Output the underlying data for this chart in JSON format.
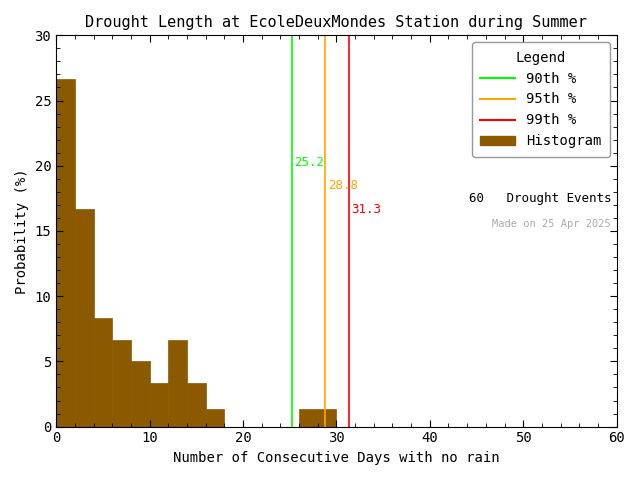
{
  "title": "Drought Length at EcoleDeuxMondes Station during Summer",
  "xlabel": "Number of Consecutive Days with no rain",
  "ylabel": "Probability (%)",
  "bar_color": "#8B5A00",
  "bar_edge_color": "#8B5A00",
  "xlim": [
    0,
    60
  ],
  "ylim": [
    0,
    30
  ],
  "xticks": [
    0,
    10,
    20,
    30,
    40,
    50,
    60
  ],
  "yticks": [
    0,
    5,
    10,
    15,
    20,
    25,
    30
  ],
  "bin_width": 2,
  "hist_left_edges": [
    0,
    2,
    4,
    6,
    8,
    10,
    12,
    14,
    16,
    18,
    20,
    22,
    24,
    26,
    28,
    30,
    32
  ],
  "hist_values": [
    26.67,
    16.67,
    8.33,
    6.67,
    5.0,
    3.33,
    6.67,
    3.33,
    1.33,
    0,
    0,
    0,
    0,
    1.33,
    1.33,
    0,
    0
  ],
  "p90_x": 25.2,
  "p95_x": 28.8,
  "p99_x": 31.3,
  "p90_color": "#00FF00",
  "p95_color": "#FFA500",
  "p99_color": "#FF0000",
  "p90_label": "90th %",
  "p95_label": "95th %",
  "p99_label": "99th %",
  "p90_text": "25.2",
  "p95_text": "28.8",
  "p99_text": "31.3",
  "hist_label": "Histogram",
  "events_label": "60   Drought Events",
  "made_on_label": "Made on 25 Apr 2025",
  "legend_title": "Legend",
  "background_color": "#ffffff",
  "font_family": "monospace",
  "figsize": [
    6.4,
    4.8
  ],
  "dpi": 100
}
